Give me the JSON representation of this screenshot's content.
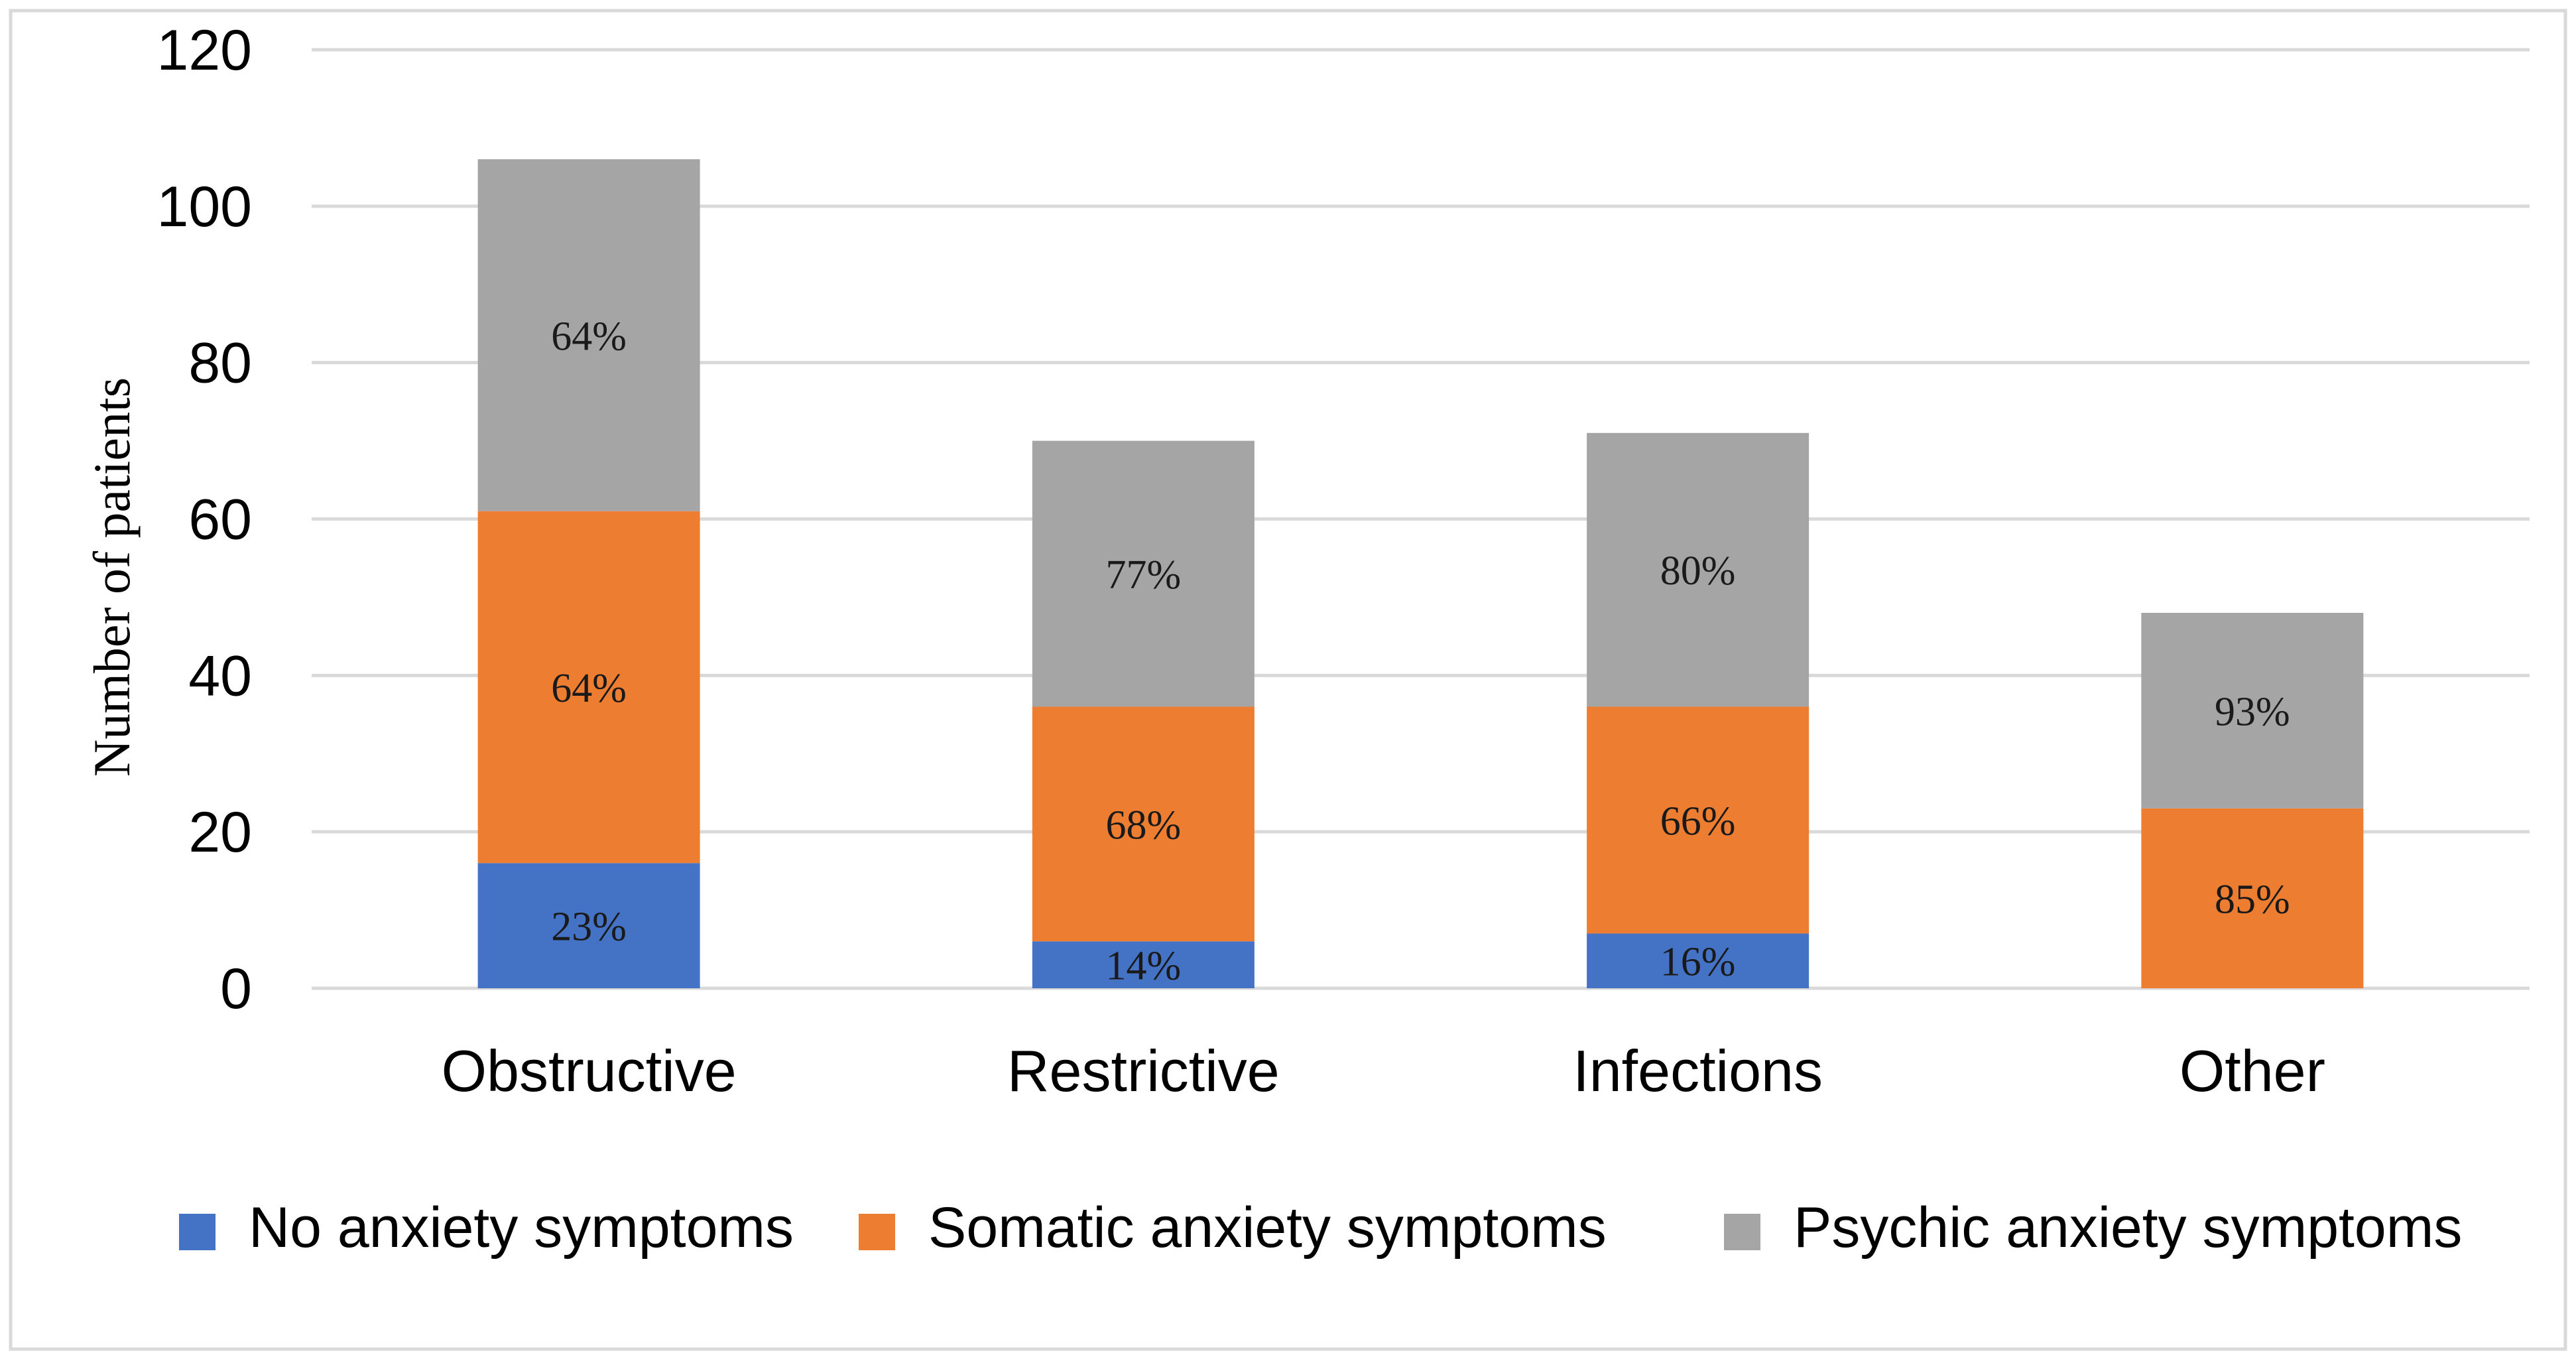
{
  "chart_data": {
    "type": "bar",
    "stacked": true,
    "title": "",
    "xlabel": "",
    "ylabel": "Number of patients",
    "ylim": [
      0,
      120
    ],
    "yticks": [
      0,
      20,
      40,
      60,
      80,
      100,
      120
    ],
    "grid": true,
    "legend_position": "bottom",
    "categories": [
      "Obstructive",
      "Restrictive",
      "Infections",
      "Other"
    ],
    "series": [
      {
        "name": "No anxiety symptoms",
        "color": "#4472C4",
        "values": [
          16,
          6,
          7,
          0
        ],
        "labels": [
          "23%",
          "14%",
          "16%",
          ""
        ]
      },
      {
        "name": "Somatic anxiety symptoms",
        "color": "#ED7D31",
        "values": [
          45,
          30,
          29,
          23
        ],
        "labels": [
          "64%",
          "68%",
          "66%",
          "85%"
        ]
      },
      {
        "name": "Psychic anxiety symptoms",
        "color": "#A5A5A5",
        "values": [
          45,
          34,
          35,
          25
        ],
        "labels": [
          "64%",
          "77%",
          "80%",
          "93%"
        ]
      }
    ]
  }
}
